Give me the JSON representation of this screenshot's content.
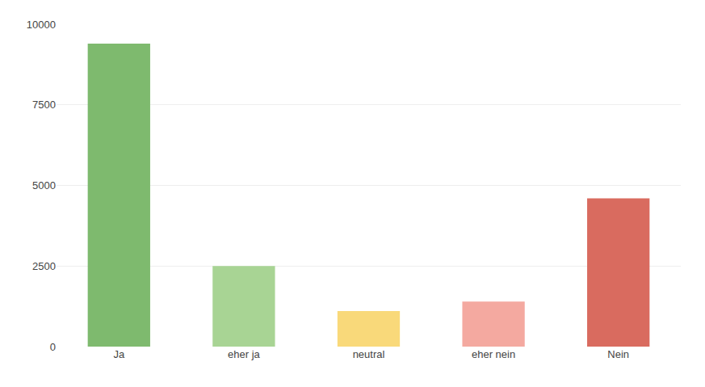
{
  "chart_data": {
    "type": "bar",
    "categories": [
      "Ja",
      "eher ja",
      "neutral",
      "eher nein",
      "Nein"
    ],
    "values": [
      9400,
      2500,
      1100,
      1400,
      4600
    ],
    "colors": [
      "#7eba6e",
      "#a8d494",
      "#f9d97a",
      "#f4a9a0",
      "#d96b5f"
    ],
    "ylim": [
      0,
      10000
    ],
    "yticks": [
      0,
      2500,
      5000,
      7500,
      10000
    ],
    "grid": true
  }
}
